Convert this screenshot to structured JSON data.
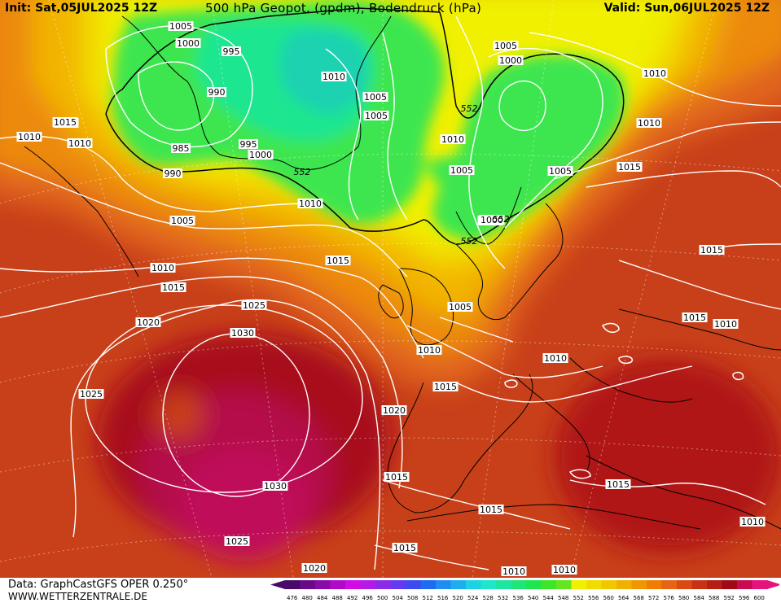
{
  "header": {
    "init": "Init: Sat,05JUL2025 12Z",
    "title": "500 hPa Geopot. (gpdm), Bodendruck (hPa)",
    "valid": "Valid: Sun,06JUL2025 12Z"
  },
  "footer": {
    "data_source": "Data: GraphCastGFS OPER 0.250°",
    "website": "WWW.WETTERZENTRALE.DE"
  },
  "colorbar": {
    "labels": [
      "476",
      "480",
      "484",
      "488",
      "492",
      "496",
      "500",
      "504",
      "508",
      "512",
      "516",
      "520",
      "524",
      "528",
      "532",
      "536",
      "540",
      "544",
      "548",
      "552",
      "556",
      "560",
      "564",
      "568",
      "572",
      "576",
      "580",
      "584",
      "588",
      "592",
      "596",
      "600"
    ],
    "colors": [
      "#4a0a6a",
      "#6a0a8a",
      "#8a0aa8",
      "#b00ac8",
      "#d40ae6",
      "#b41ae6",
      "#8c2ae6",
      "#643aee",
      "#3c4af0",
      "#1e6af0",
      "#1e8cf0",
      "#1eaef0",
      "#1ed2e6",
      "#1ee6c8",
      "#1ee6a0",
      "#1ee678",
      "#1ee650",
      "#3ce628",
      "#64e61e",
      "#f0f000",
      "#f0dc00",
      "#f0c800",
      "#f0b000",
      "#f09600",
      "#f07c00",
      "#e66414",
      "#dc4a14",
      "#c83214",
      "#b41e14",
      "#a00a14",
      "#c80a50",
      "#e6147a"
    ]
  },
  "map_labels": {
    "isobars": [
      "1005",
      "1000",
      "995",
      "990",
      "985",
      "990",
      "995",
      "1000",
      "1010",
      "1005",
      "1005",
      "1015",
      "1010",
      "1010",
      "1010",
      "1005",
      "1000",
      "1010",
      "1005",
      "1005",
      "1000",
      "1000",
      "1010",
      "1015",
      "1005",
      "1015",
      "1010",
      "1010",
      "1015",
      "1015",
      "1015",
      "1020",
      "1025",
      "1030",
      "1025",
      "1030",
      "1025",
      "1020",
      "1015",
      "1015",
      "1015",
      "1015",
      "1015",
      "1010",
      "1010",
      "1010",
      "1010",
      "1010",
      "1020",
      "1005",
      "1010",
      "1015"
    ],
    "geopotential": [
      "552",
      "552",
      "552",
      "552"
    ]
  }
}
